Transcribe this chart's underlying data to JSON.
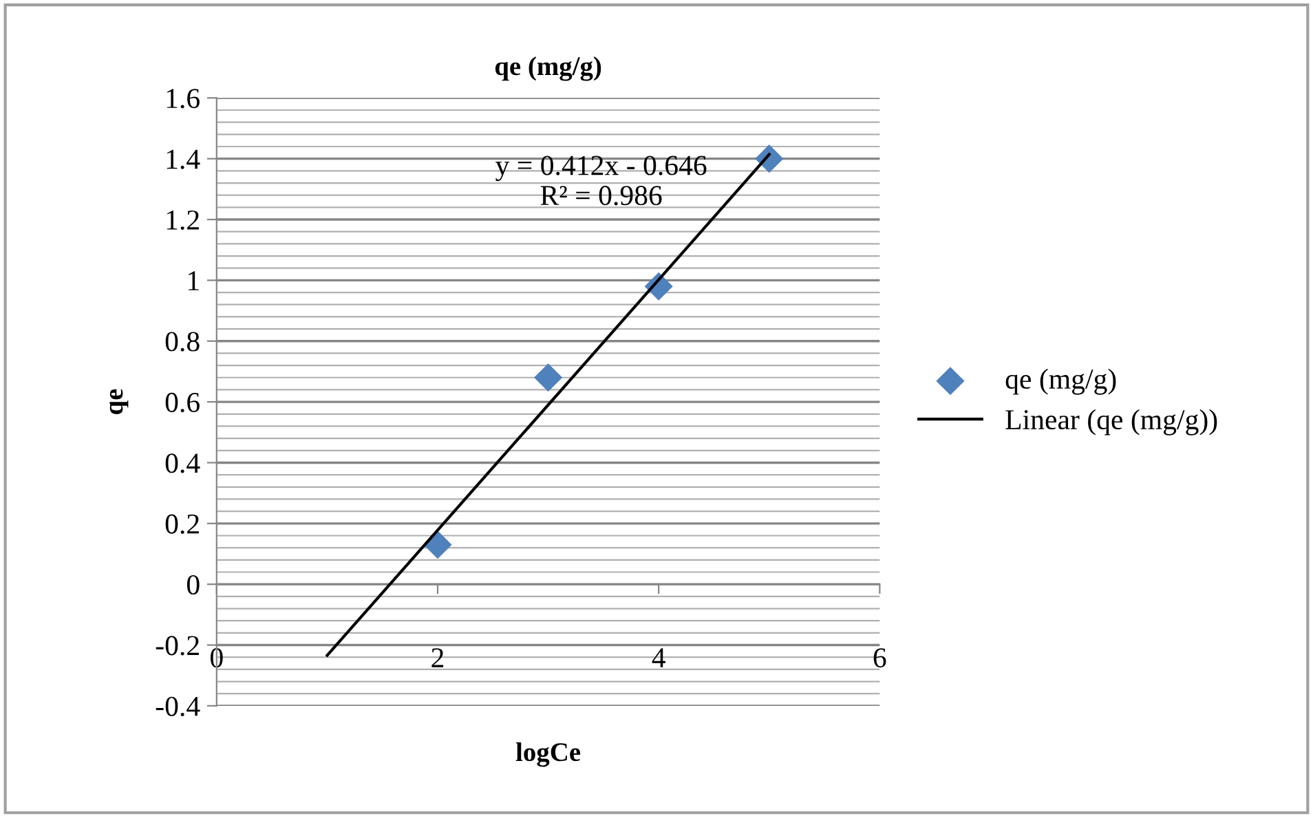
{
  "chart_data": {
    "type": "scatter",
    "title": "qe (mg/g)",
    "xlabel": "logCe",
    "ylabel": "qe",
    "series": [
      {
        "name": "qe (mg/g)",
        "color": "#4f81bd",
        "x": [
          2,
          3,
          4,
          5
        ],
        "values": [
          0.13,
          0.68,
          0.98,
          1.4
        ],
        "marker": "diamond"
      },
      {
        "name": "Linear (qe (mg/g))",
        "type": "line",
        "color": "#000000",
        "x": [
          1,
          5
        ],
        "values": [
          -0.234,
          1.414
        ],
        "line_style": "solid"
      }
    ],
    "annotations": [
      "y = 0.412x - 0.646\nR² = 0.986"
    ],
    "xlim": [
      0,
      6
    ],
    "xticks": [
      0,
      2,
      4,
      6
    ],
    "ylim": [
      -0.4,
      1.6
    ],
    "yticks": [
      -0.4,
      -0.2,
      0,
      0.2,
      0.4,
      0.6,
      0.8,
      1,
      1.2,
      1.4,
      1.6
    ],
    "grid": "y",
    "legend": "right"
  }
}
